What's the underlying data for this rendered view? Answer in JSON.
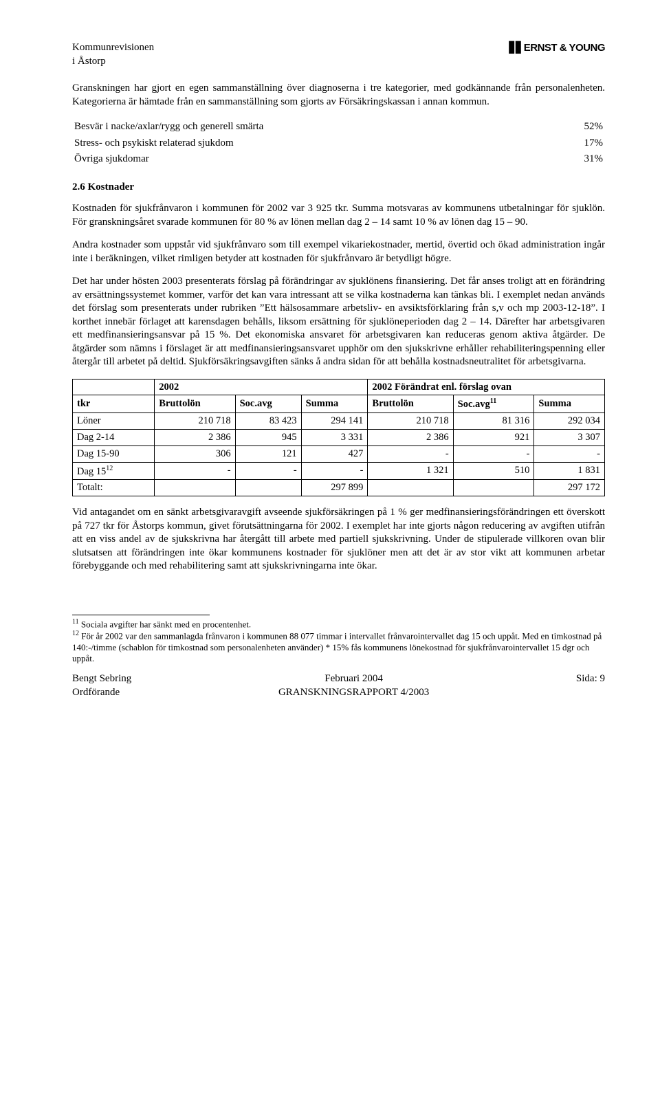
{
  "header": {
    "left_line1": "Kommunrevisionen",
    "left_line2": "i Åstorp",
    "right_brand": "ERNST & YOUNG"
  },
  "intro_p1": "Granskningen har gjort en egen sammanställning över diagnoserna i tre kategorier, med godkännande från personalenheten. Kategorierna är hämtade från en sammanställning som gjorts av Försäkringskassan i annan kommun.",
  "stats": {
    "rows": [
      {
        "label": "Besvär i nacke/axlar/rygg och generell smärta",
        "value": "52%"
      },
      {
        "label": "Stress- och psykiskt relaterad sjukdom",
        "value": "17%"
      },
      {
        "label": "Övriga sjukdomar",
        "value": "31%"
      }
    ]
  },
  "section_heading": "2.6 Kostnader",
  "p2": "Kostnaden för sjukfrånvaron i kommunen för 2002 var 3 925 tkr. Summa motsvaras av kommunens utbetalningar för sjuklön. För granskningsåret svarade kommunen för 80 % av lönen mellan dag 2 – 14 samt 10 % av lönen dag 15 – 90.",
  "p3": "Andra kostnader som uppstår vid sjukfrånvaro som till exempel vikariekostnader, mertid, övertid och ökad administration ingår inte i beräkningen, vilket rimligen betyder att kostnaden för sjukfrånvaro är betydligt högre.",
  "p4": "Det har under hösten 2003 presenterats förslag på förändringar av sjuklönens finansiering. Det får anses troligt att en förändring av ersättningssystemet kommer, varför det kan vara intressant att se vilka kostnaderna kan tänkas bli. I exemplet nedan används det förslag som presenterats under rubriken ”Ett hälsosammare arbetsliv- en avsiktsförklaring från s,v och mp 2003-12-18”. I korthet innebär förlaget att karensdagen behålls, liksom ersättning för sjuklöneperioden dag 2 – 14. Därefter har arbetsgivaren ett medfinansieringsansvar på 15 %. Det ekonomiska ansvaret för arbetsgivaren kan reduceras genom aktiva åtgärder. De åtgärder som nämns i förslaget är att medfinansieringsansvaret upphör om den sjukskrivne erhåller rehabiliteringspenning eller återgår till arbetet på deltid. Sjukförsäkringsavgiften sänks å andra sidan för att behålla kostnadsneutralitet för arbetsgivarna.",
  "table": {
    "group1": "2002",
    "group2": "2002 Förändrat enl. förslag ovan",
    "headers": [
      "tkr",
      "Bruttolön",
      "Soc.avg",
      "Summa",
      "Bruttolön",
      "Soc.avg",
      "Summa"
    ],
    "header_sup": "11",
    "rows": [
      {
        "label": "Löner",
        "c": [
          "210 718",
          "83 423",
          "294 141",
          "210 718",
          "81 316",
          "292 034"
        ]
      },
      {
        "label": "Dag 2-14",
        "c": [
          "2 386",
          "945",
          "3 331",
          "2 386",
          "921",
          "3 307"
        ]
      },
      {
        "label": "Dag 15-90",
        "c": [
          "306",
          "121",
          "427",
          "-",
          "-",
          "-"
        ]
      },
      {
        "label": "Dag 15",
        "sup": "12",
        "c": [
          "-",
          "-",
          "-",
          "1 321",
          "510",
          "1 831"
        ]
      },
      {
        "label": "Totalt:",
        "c": [
          "",
          "",
          "297 899",
          "",
          "",
          "297 172"
        ]
      }
    ]
  },
  "p5": "Vid antagandet om en sänkt arbetsgivaravgift avseende sjukförsäkringen på 1 % ger medfinansieringsförändringen ett överskott på 727 tkr för Åstorps kommun, givet förutsättningarna för 2002. I exemplet har inte gjorts någon reducering av avgiften utifrån att en viss andel av de sjukskrivna har återgått till arbete med partiell sjukskrivning. Under de stipulerade villkoren ovan blir slutsatsen att förändringen inte ökar kommunens kostnader för sjuklöner men att det är av stor vikt att kommunen arbetar förebyggande och med rehabilitering samt att sjukskrivningarna inte ökar.",
  "footnotes": {
    "f11": "Sociala avgifter har sänkt med en procentenhet.",
    "f12": "För år 2002 var den sammanlagda frånvaron i kommunen 88 077 timmar i intervallet frånvarointervallet dag 15 och uppåt. Med en timkostnad på 140:-/timme (schablon för timkostnad som personalenheten använder) * 15% fås kommunens lönekostnad för sjukfrånvarointervallet 15 dgr och uppåt."
  },
  "footer": {
    "left_line1": "Bengt Sebring",
    "left_line2": "Ordförande",
    "center_line1": "Februari 2004",
    "center_line2": "GRANSKNINGSRAPPORT 4/2003",
    "right": "Sida: 9"
  }
}
